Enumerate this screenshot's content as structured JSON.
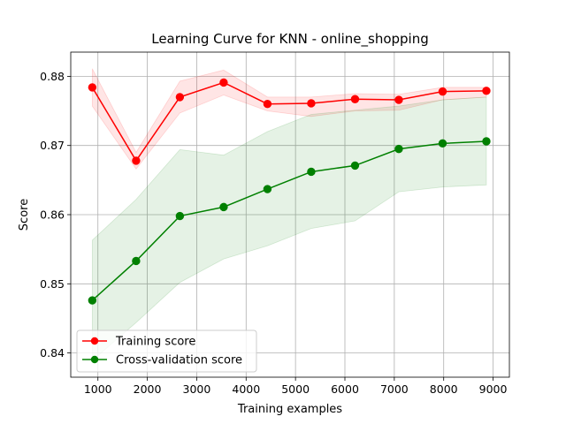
{
  "chart_data": {
    "type": "line",
    "title": "Learning Curve for KNN - online_shopping",
    "xlabel": "Training examples",
    "ylabel": "Score",
    "xlim": [
      450,
      9330
    ],
    "ylim": [
      0.8365,
      0.8835
    ],
    "xticks": [
      1000,
      2000,
      3000,
      4000,
      5000,
      6000,
      7000,
      8000,
      9000
    ],
    "yticks": [
      0.84,
      0.85,
      0.86,
      0.87,
      0.88
    ],
    "xtick_labels": [
      "1000",
      "2000",
      "3000",
      "4000",
      "5000",
      "6000",
      "7000",
      "8000",
      "9000"
    ],
    "ytick_labels": [
      "0.84",
      "0.85",
      "0.86",
      "0.87",
      "0.88"
    ],
    "grid": true,
    "legend_position": "lower-left",
    "x": [
      886,
      1773,
      2659,
      3546,
      4432,
      5318,
      6205,
      7091,
      7978,
      8864
    ],
    "series": [
      {
        "name": "Training score",
        "color": "#ff0000",
        "band_color": "#ff0000",
        "values": [
          0.8784,
          0.8678,
          0.877,
          0.8791,
          0.876,
          0.8761,
          0.8767,
          0.8766,
          0.8778,
          0.8779
        ],
        "band_upper": [
          0.8811,
          0.869,
          0.8793,
          0.8809,
          0.877,
          0.877,
          0.8775,
          0.8774,
          0.8784,
          0.8784
        ],
        "band_lower": [
          0.8757,
          0.8666,
          0.8747,
          0.8773,
          0.875,
          0.8742,
          0.875,
          0.8751,
          0.8766,
          0.877
        ]
      },
      {
        "name": "Cross-validation score",
        "color": "#008000",
        "band_color": "#008000",
        "values": [
          0.8476,
          0.8533,
          0.8598,
          0.8611,
          0.8637,
          0.8662,
          0.8671,
          0.8695,
          0.8703,
          0.8706
        ],
        "band_upper": [
          0.8563,
          0.8622,
          0.8694,
          0.8686,
          0.872,
          0.8745,
          0.8751,
          0.8757,
          0.8766,
          0.877
        ],
        "band_lower": [
          0.8389,
          0.8444,
          0.8502,
          0.8536,
          0.8555,
          0.858,
          0.8591,
          0.8633,
          0.864,
          0.8643
        ]
      }
    ]
  }
}
